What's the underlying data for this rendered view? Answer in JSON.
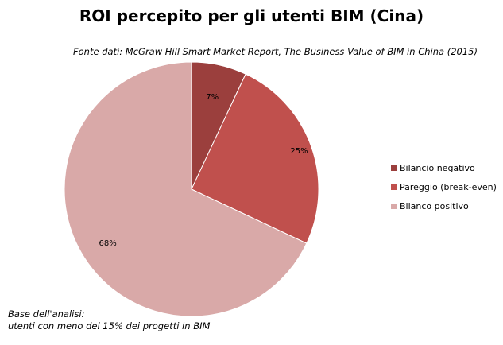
{
  "chart_data": {
    "type": "pie",
    "title": "ROI percepito per gli utenti BIM (Cina)",
    "subtitle": "Fonte dati: McGraw Hill Smart Market Report, The Business Value  of BIM in China (2015)",
    "note": [
      "Base dell'analisi:",
      "utenti con meno del 15% dei progetti in BIM"
    ],
    "legend_position": "right",
    "slices": [
      {
        "label": "Bilancio negativo",
        "value": 7,
        "data_label": "7%",
        "color": "#9B3F3D"
      },
      {
        "label": "Pareggio (break-even)",
        "value": 25,
        "data_label": "25%",
        "color": "#C0504D"
      },
      {
        "label": "Bilanco positivo",
        "value": 68,
        "data_label": "68%",
        "color": "#D9A9A8"
      }
    ]
  }
}
